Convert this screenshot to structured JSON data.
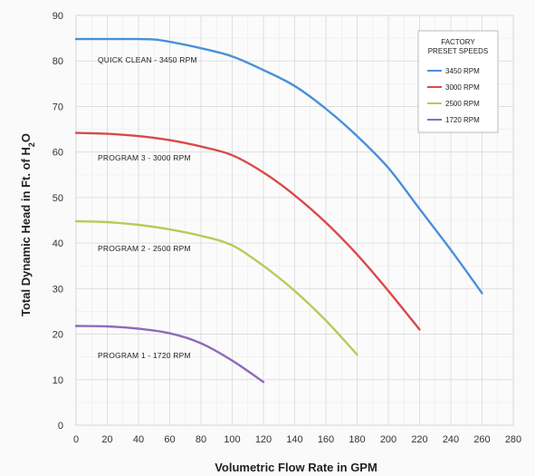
{
  "chart_data": {
    "type": "line",
    "xlabel": "Volumetric Flow Rate in GPM",
    "ylabel_parts": [
      "Total Dynamic Head in Ft. of H",
      "2",
      "O"
    ],
    "xlim": [
      0,
      280
    ],
    "ylim": [
      0,
      90
    ],
    "x_ticks": [
      "0",
      "20",
      "40",
      "60",
      "80",
      "100",
      "120",
      "140",
      "160",
      "180",
      "200",
      "220",
      "240",
      "260",
      "280"
    ],
    "y_ticks": [
      "0",
      "10",
      "20",
      "30",
      "40",
      "50",
      "60",
      "70",
      "80",
      "90"
    ],
    "grid": true,
    "legend": {
      "placement": "top-right",
      "title_lines": [
        "FACTORY",
        "PRESET SPEEDS"
      ]
    },
    "series": [
      {
        "name": "3450 RPM",
        "label": "QUICK CLEAN - 3450 RPM",
        "color": "#4a90d9",
        "points": [
          [
            0,
            84.8
          ],
          [
            20,
            84.8
          ],
          [
            40,
            84.8
          ],
          [
            50,
            84.7
          ],
          [
            60,
            84.2
          ],
          [
            80,
            82.8
          ],
          [
            100,
            81
          ],
          [
            120,
            78
          ],
          [
            140,
            74.5
          ],
          [
            160,
            69.5
          ],
          [
            180,
            63.5
          ],
          [
            200,
            56.5
          ],
          [
            220,
            47.5
          ],
          [
            240,
            38.5
          ],
          [
            260,
            29
          ]
        ]
      },
      {
        "name": "3000 RPM",
        "label": "PROGRAM 3 - 3000 RPM",
        "color": "#d94a4a",
        "points": [
          [
            0,
            64.2
          ],
          [
            20,
            64
          ],
          [
            40,
            63.5
          ],
          [
            60,
            62.6
          ],
          [
            80,
            61.2
          ],
          [
            100,
            59.3
          ],
          [
            120,
            55.5
          ],
          [
            140,
            50.5
          ],
          [
            160,
            44.5
          ],
          [
            180,
            37.5
          ],
          [
            200,
            29.5
          ],
          [
            220,
            21
          ]
        ]
      },
      {
        "name": "2500 RPM",
        "label": "PROGRAM 2 - 2500 RPM",
        "color": "#b5cc5a",
        "points": [
          [
            0,
            44.8
          ],
          [
            20,
            44.6
          ],
          [
            40,
            44
          ],
          [
            60,
            43
          ],
          [
            80,
            41.6
          ],
          [
            100,
            39.5
          ],
          [
            120,
            35
          ],
          [
            140,
            29.5
          ],
          [
            160,
            23
          ],
          [
            180,
            15.5
          ]
        ]
      },
      {
        "name": "1720 RPM",
        "label": "PROGRAM 1 - 1720 RPM",
        "color": "#8e6bb8",
        "points": [
          [
            0,
            21.8
          ],
          [
            20,
            21.7
          ],
          [
            40,
            21.2
          ],
          [
            60,
            20.2
          ],
          [
            80,
            18
          ],
          [
            100,
            14.2
          ],
          [
            120,
            9.5
          ]
        ]
      }
    ]
  }
}
